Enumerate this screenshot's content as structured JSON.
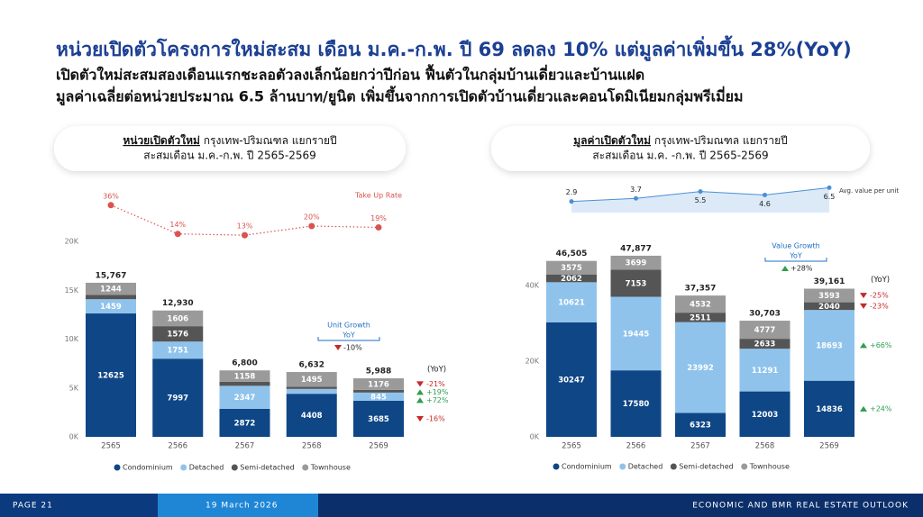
{
  "header": {
    "title": "หน่วยเปิดตัวโครงการใหม่สะสม เดือน ม.ค.-ก.พ.  ปี 69 ลดลง 10% แต่มูลค่าเพิ่มขึ้น 28%(YoY)",
    "subtitle": [
      "เปิดตัวใหม่สะสมสองเดือนแรกชะลอตัวลงเล็กน้อยกว่าปีก่อน ฟื้นตัวในกลุ่มบ้านเดี่ยวและบ้านแฝด",
      "มูลค่าเฉลี่ยต่อหน่วยประมาณ 6.5 ล้านบาท/ยูนิต เพิ่มขึ้นจากการเปิดตัวบ้านเดี่ยวและคอนโดมิเนียมกลุ่มพรีเมี่ยม"
    ]
  },
  "chart_data": [
    {
      "type": "bar",
      "stacked": true,
      "heading": {
        "bold": "หน่วยเปิดตัวใหม่",
        "rest": " กรุงเทพ-ปริมณฑล แยกรายปี",
        "line2": "สะสมเดือน ม.ค.-ก.พ. ปี 2565-2569"
      },
      "categories": [
        "2565",
        "2566",
        "2567",
        "2568",
        "2569"
      ],
      "ylim": [
        0,
        20000
      ],
      "yticks": [
        {
          "value": 0,
          "label": "0K"
        },
        {
          "value": 5000,
          "label": "5K"
        },
        {
          "value": 10000,
          "label": "10K"
        },
        {
          "value": 15000,
          "label": "15K"
        },
        {
          "value": 20000,
          "label": "20K"
        }
      ],
      "series": [
        {
          "name": "Condominium",
          "color": "#0e4686",
          "values": [
            12625,
            7997,
            2872,
            4408,
            3685
          ],
          "yoy_label": "-16%"
        },
        {
          "name": "Detached",
          "color": "#8fc3ec",
          "values": [
            1459,
            1751,
            2347,
            492,
            845
          ],
          "yoy_label": "+72%"
        },
        {
          "name": "Semi-detached",
          "color": "#555555",
          "values": [
            439,
            1576,
            423,
            237,
            282
          ],
          "yoy_label": "+19%"
        },
        {
          "name": "Townhouse",
          "color": "#9a9a9a",
          "values": [
            1244,
            1606,
            1158,
            1495,
            1176
          ],
          "yoy_label": "-21%"
        }
      ],
      "total_labels": [
        "15,767",
        "12,930",
        "6,800",
        "6,632",
        "5,988"
      ],
      "yoy_title": "(YoY)",
      "growth": {
        "title": "Unit Growth",
        "subtitle": "YoY",
        "label": "-10%"
      },
      "y2lim": [
        0,
        40
      ],
      "line": {
        "name": "Take Up Rate",
        "axis": "y2",
        "color": "#d9534f",
        "style": "dotted",
        "values": [
          36,
          14,
          13,
          20,
          19
        ],
        "value_labels": [
          "36%",
          "14%",
          "13%",
          "20%",
          "19%"
        ]
      },
      "up_color": "#2e9e4f",
      "down_color": "#c62828"
    },
    {
      "type": "bar",
      "stacked": true,
      "heading": {
        "bold": "มูลค่าเปิดตัวใหม่",
        "rest": " กรุงเทพ-ปริมณฑล แยกรายปี",
        "line2": "สะสมเดือน ม.ค. -ก.พ. ปี 2565-2569"
      },
      "categories": [
        "2565",
        "2566",
        "2567",
        "2568",
        "2569"
      ],
      "ylim": [
        0,
        50000
      ],
      "yticks": [
        {
          "value": 0,
          "label": "0K"
        },
        {
          "value": 20000,
          "label": "20K"
        },
        {
          "value": 40000,
          "label": "40K"
        }
      ],
      "series": [
        {
          "name": "Condominium",
          "color": "#0e4686",
          "values": [
            30247,
            17580,
            6323,
            12003,
            14836
          ],
          "yoy_label": "+24%"
        },
        {
          "name": "Detached",
          "color": "#8fc3ec",
          "values": [
            10621,
            19445,
            23992,
            11291,
            18693
          ],
          "yoy_label": "+66%"
        },
        {
          "name": "Semi-detached",
          "color": "#555555",
          "values": [
            2062,
            7153,
            2511,
            2633,
            2040
          ],
          "yoy_label": "-23%"
        },
        {
          "name": "Townhouse",
          "color": "#9a9a9a",
          "values": [
            3575,
            3699,
            4532,
            4777,
            3593
          ],
          "yoy_label": "-25%"
        }
      ],
      "total_labels": [
        "46,505",
        "47,877",
        "37,357",
        "30,703",
        "39,161"
      ],
      "yoy_title": "(YoY)",
      "growth": {
        "title": "Value Growth",
        "subtitle": "YoY",
        "label": "+28%"
      },
      "y2lim": [
        0,
        8
      ],
      "line": {
        "name": "Avg. value per unit",
        "axis": "y2",
        "color": "#4a8fd6",
        "style": "area",
        "area_color": "#dceaf8",
        "values": [
          2.9,
          3.7,
          5.5,
          4.6,
          6.5
        ]
      },
      "up_color": "#2e9e4f",
      "down_color": "#c62828"
    }
  ],
  "footer": {
    "page": "PAGE 21",
    "date": "19 March 2026",
    "publication": "ECONOMIC AND BMR REAL ESTATE OUTLOOK"
  }
}
